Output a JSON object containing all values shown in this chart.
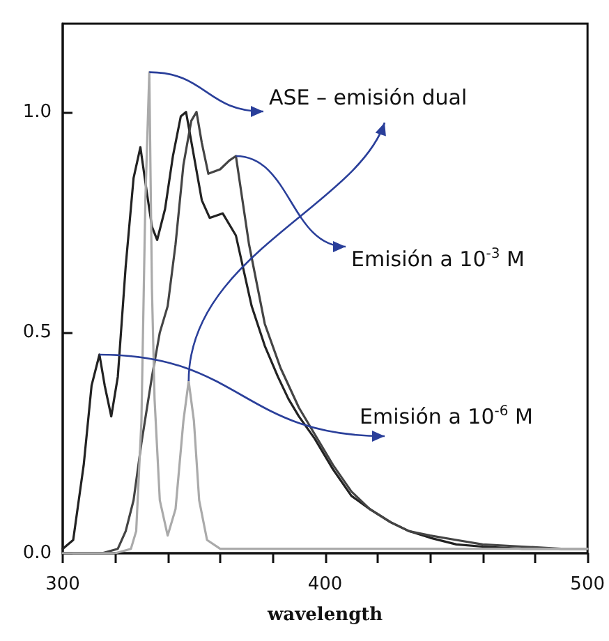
{
  "chart_data": {
    "type": "line",
    "xlabel": "wavelength",
    "xlim": [
      300,
      500
    ],
    "xticks": [
      300,
      {
        "value": 320,
        "label": null
      },
      {
        "value": 340,
        "label": null
      },
      {
        "value": 360,
        "label": null
      },
      {
        "value": 380,
        "label": null
      },
      400,
      {
        "value": 420,
        "label": null
      },
      {
        "value": 440,
        "label": null
      },
      {
        "value": 460,
        "label": null
      },
      {
        "value": 480,
        "label": null
      },
      500
    ],
    "ylim": [
      0,
      1.2
    ],
    "yticks": [
      {
        "value": 0,
        "label": "0.0"
      },
      {
        "value": 0.5,
        "label": "0.5"
      },
      {
        "value": 1,
        "label": "1.0"
      }
    ],
    "annotations": [
      {
        "text": "Emisión a 10$^{-6}$ M",
        "x": 314,
        "y": 0.45
      },
      {
        "text": "Emisión a 10$^{-3}$ M",
        "x": 366,
        "y": 0.9
      },
      {
        "text": "ASE – emisión dual",
        "x": 333,
        "y": 1.09
      }
    ],
    "grid": false,
    "marker": "none",
    "line_style": "solid",
    "series": [
      {
        "color": "#222222",
        "x": [
          300,
          304,
          308,
          311,
          314,
          316,
          318.5,
          321,
          324,
          327,
          329.6,
          332,
          334,
          336,
          339,
          342,
          345,
          347,
          350,
          353,
          356,
          361,
          366,
          372,
          377,
          382,
          386,
          390,
          396,
          403,
          410,
          417,
          425,
          432,
          440,
          450,
          460,
          475,
          490,
          500
        ],
        "values": [
          0.01,
          0.03,
          0.2,
          0.38,
          0.45,
          0.38,
          0.31,
          0.4,
          0.65,
          0.85,
          0.92,
          0.82,
          0.74,
          0.71,
          0.78,
          0.9,
          0.99,
          1.0,
          0.9,
          0.8,
          0.76,
          0.77,
          0.72,
          0.56,
          0.47,
          0.4,
          0.35,
          0.31,
          0.26,
          0.19,
          0.13,
          0.1,
          0.07,
          0.05,
          0.035,
          0.02,
          0.015,
          0.01,
          0.01,
          0.01
        ]
      },
      {
        "color": "#444444",
        "x": [
          300,
          315,
          321,
          324,
          327,
          330,
          334,
          337,
          340,
          343,
          346,
          349,
          351,
          353,
          355.5,
          360,
          363.5,
          366,
          367,
          371,
          377,
          383,
          390,
          396,
          403,
          410,
          417,
          425,
          432,
          440,
          450,
          460,
          475,
          490,
          500
        ],
        "values": [
          0.0,
          0.0,
          0.01,
          0.05,
          0.12,
          0.25,
          0.4,
          0.5,
          0.56,
          0.7,
          0.88,
          0.98,
          1.0,
          0.93,
          0.86,
          0.87,
          0.89,
          0.9,
          0.86,
          0.7,
          0.52,
          0.42,
          0.33,
          0.27,
          0.2,
          0.14,
          0.1,
          0.07,
          0.05,
          0.04,
          0.03,
          0.02,
          0.015,
          0.01,
          0.01
        ]
      },
      {
        "color": "#aaaaaa",
        "x": [
          300,
          320,
          326,
          328,
          330,
          331.5,
          333,
          334,
          335,
          337,
          340,
          343,
          346,
          348,
          350,
          352,
          355,
          360,
          400,
          500
        ],
        "values": [
          0.0,
          0.0,
          0.01,
          0.05,
          0.3,
          0.8,
          1.09,
          0.6,
          0.35,
          0.12,
          0.04,
          0.1,
          0.3,
          0.39,
          0.3,
          0.12,
          0.03,
          0.01,
          0.01,
          0.01
        ]
      }
    ]
  }
}
